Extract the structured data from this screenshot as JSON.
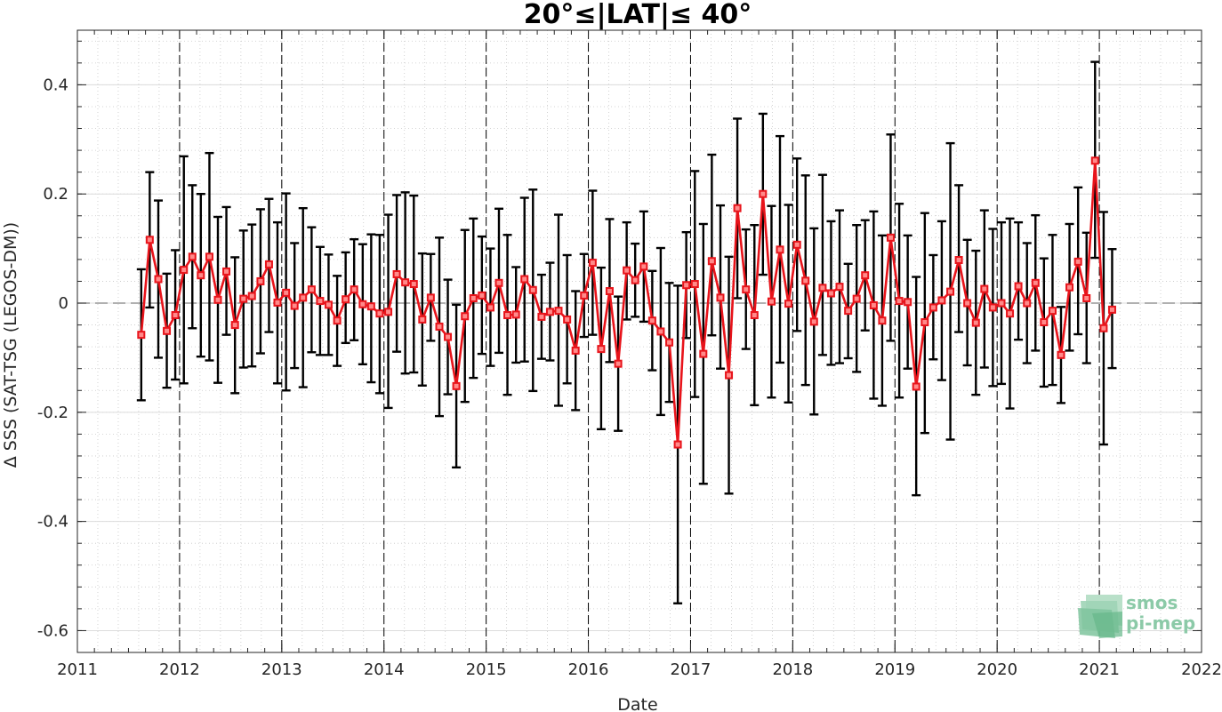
{
  "chart_data": {
    "type": "line",
    "title": "20°≤|LAT|≤ 40°",
    "xlabel": "Date",
    "ylabel": "Δ SSS (SAT-TSG (LEGOS-DM))",
    "xlim": [
      2011,
      2022
    ],
    "ylim": [
      -0.64,
      0.5
    ],
    "x_ticks": [
      "2011",
      "2012",
      "2013",
      "2014",
      "2015",
      "2016",
      "2017",
      "2018",
      "2019",
      "2020",
      "2021",
      "2022"
    ],
    "y_ticks": [
      "0.4",
      "0.2",
      "0",
      "-0.2",
      "-0.4",
      "-0.6"
    ],
    "y_tick_values": [
      0.4,
      0.2,
      0,
      -0.2,
      -0.4,
      -0.6
    ],
    "grid": true,
    "series": [
      {
        "color": "#e8141b",
        "error_bar_color": "#000000",
        "x": [
          2011.625,
          2011.708,
          2011.792,
          2011.875,
          2011.958,
          2012.042,
          2012.125,
          2012.208,
          2012.292,
          2012.375,
          2012.458,
          2012.542,
          2012.625,
          2012.708,
          2012.792,
          2012.875,
          2012.958,
          2013.042,
          2013.125,
          2013.208,
          2013.292,
          2013.375,
          2013.458,
          2013.542,
          2013.625,
          2013.708,
          2013.792,
          2013.875,
          2013.958,
          2014.042,
          2014.125,
          2014.208,
          2014.292,
          2014.375,
          2014.458,
          2014.542,
          2014.625,
          2014.708,
          2014.792,
          2014.875,
          2014.958,
          2015.042,
          2015.125,
          2015.208,
          2015.292,
          2015.375,
          2015.458,
          2015.542,
          2015.625,
          2015.708,
          2015.792,
          2015.875,
          2015.958,
          2016.042,
          2016.125,
          2016.208,
          2016.292,
          2016.375,
          2016.458,
          2016.542,
          2016.625,
          2016.708,
          2016.792,
          2016.875,
          2016.958,
          2017.042,
          2017.125,
          2017.208,
          2017.292,
          2017.375,
          2017.458,
          2017.542,
          2017.625,
          2017.708,
          2017.792,
          2017.875,
          2017.958,
          2018.042,
          2018.125,
          2018.208,
          2018.292,
          2018.375,
          2018.458,
          2018.542,
          2018.625,
          2018.708,
          2018.792,
          2018.875,
          2018.958,
          2019.042,
          2019.125,
          2019.208,
          2019.292,
          2019.375,
          2019.458,
          2019.542,
          2019.625,
          2019.708,
          2019.792,
          2019.875,
          2019.958,
          2020.042,
          2020.125,
          2020.208,
          2020.292,
          2020.375,
          2020.458,
          2020.542,
          2020.625,
          2020.708,
          2020.792,
          2020.875,
          2020.958,
          2021.042,
          2021.125
        ],
        "values": [
          -0.058,
          0.116,
          0.044,
          -0.051,
          -0.022,
          0.061,
          0.085,
          0.051,
          0.085,
          0.006,
          0.058,
          -0.04,
          0.008,
          0.013,
          0.04,
          0.071,
          0.001,
          0.019,
          -0.005,
          0.01,
          0.025,
          0.004,
          -0.003,
          -0.032,
          0.007,
          0.025,
          -0.002,
          -0.006,
          -0.019,
          -0.016,
          0.053,
          0.038,
          0.035,
          -0.03,
          0.01,
          -0.043,
          -0.062,
          -0.152,
          -0.024,
          0.009,
          0.014,
          -0.008,
          0.037,
          -0.022,
          -0.021,
          0.044,
          0.024,
          -0.025,
          -0.016,
          -0.014,
          -0.03,
          -0.087,
          0.014,
          0.074,
          -0.084,
          0.022,
          -0.111,
          0.06,
          0.042,
          0.067,
          -0.032,
          -0.052,
          -0.072,
          -0.259,
          0.033,
          0.035,
          -0.093,
          0.077,
          0.01,
          -0.132,
          0.174,
          0.025,
          -0.022,
          0.2,
          0.003,
          0.098,
          -0.001,
          0.107,
          0.041,
          -0.034,
          0.028,
          0.018,
          0.03,
          -0.014,
          0.008,
          0.051,
          -0.004,
          -0.032,
          0.12,
          0.004,
          0.002,
          -0.153,
          -0.035,
          -0.008,
          0.005,
          0.021,
          0.079,
          0.0,
          -0.036,
          0.026,
          -0.008,
          0.0,
          -0.019,
          0.031,
          0.0,
          0.037,
          -0.035,
          -0.014,
          -0.095,
          0.029,
          0.076,
          0.009,
          0.261,
          -0.046,
          -0.012
        ],
        "err_low": [
          -0.178,
          -0.008,
          -0.1,
          -0.155,
          -0.14,
          -0.147,
          -0.046,
          -0.098,
          -0.105,
          -0.146,
          -0.058,
          -0.165,
          -0.118,
          -0.116,
          -0.092,
          -0.053,
          -0.147,
          -0.16,
          -0.119,
          -0.154,
          -0.09,
          -0.095,
          -0.095,
          -0.115,
          -0.073,
          -0.068,
          -0.112,
          -0.145,
          -0.165,
          -0.192,
          -0.089,
          -0.129,
          -0.127,
          -0.151,
          -0.069,
          -0.207,
          -0.167,
          -0.301,
          -0.181,
          -0.137,
          -0.093,
          -0.115,
          -0.091,
          -0.168,
          -0.109,
          -0.107,
          -0.161,
          -0.102,
          -0.105,
          -0.188,
          -0.147,
          -0.196,
          -0.062,
          -0.058,
          -0.231,
          -0.108,
          -0.234,
          -0.03,
          -0.025,
          -0.034,
          -0.123,
          -0.205,
          -0.181,
          -0.55,
          -0.064,
          -0.172,
          -0.331,
          -0.059,
          -0.12,
          -0.349,
          0.009,
          -0.084,
          -0.187,
          0.052,
          -0.173,
          -0.109,
          -0.182,
          -0.051,
          -0.15,
          -0.204,
          -0.095,
          -0.113,
          -0.11,
          -0.101,
          -0.126,
          -0.05,
          -0.175,
          -0.188,
          -0.069,
          -0.173,
          -0.12,
          -0.352,
          -0.238,
          -0.103,
          -0.141,
          -0.25,
          -0.053,
          -0.114,
          -0.168,
          -0.118,
          -0.152,
          -0.148,
          -0.193,
          -0.067,
          -0.11,
          -0.087,
          -0.153,
          -0.15,
          -0.183,
          -0.087,
          -0.057,
          -0.11,
          0.083,
          -0.259,
          -0.119
        ],
        "err_high": [
          0.062,
          0.24,
          0.188,
          0.054,
          0.097,
          0.269,
          0.216,
          0.2,
          0.275,
          0.158,
          0.176,
          0.084,
          0.133,
          0.144,
          0.172,
          0.191,
          0.148,
          0.201,
          0.11,
          0.174,
          0.139,
          0.103,
          0.089,
          0.05,
          0.093,
          0.117,
          0.108,
          0.126,
          0.125,
          0.162,
          0.198,
          0.203,
          0.197,
          0.091,
          0.09,
          0.12,
          0.043,
          -0.003,
          0.134,
          0.155,
          0.122,
          0.1,
          0.173,
          0.125,
          0.066,
          0.193,
          0.208,
          0.052,
          0.074,
          0.162,
          0.088,
          0.022,
          0.09,
          0.206,
          0.065,
          0.154,
          0.012,
          0.148,
          0.109,
          0.168,
          0.059,
          0.101,
          0.037,
          0.032,
          0.13,
          0.242,
          0.145,
          0.272,
          0.179,
          0.085,
          0.338,
          0.135,
          0.143,
          0.347,
          0.178,
          0.306,
          0.18,
          0.265,
          0.234,
          0.137,
          0.235,
          0.15,
          0.17,
          0.072,
          0.143,
          0.152,
          0.168,
          0.124,
          0.309,
          0.182,
          0.124,
          0.048,
          0.165,
          0.088,
          0.15,
          0.293,
          0.216,
          0.116,
          0.096,
          0.17,
          0.136,
          0.148,
          0.155,
          0.148,
          0.11,
          0.161,
          0.082,
          0.125,
          -0.007,
          0.145,
          0.212,
          0.129,
          0.442,
          0.167,
          0.099
        ]
      }
    ]
  },
  "logo": {
    "line1": "smos",
    "line2": "pi-mep"
  },
  "colors": {
    "series": "#e8141b",
    "error_bars": "#000000",
    "axis": "#262626",
    "grid_major": "#dcdcdc",
    "grid_minor": "#c8c8c8",
    "logo": "#8ccaa8"
  }
}
